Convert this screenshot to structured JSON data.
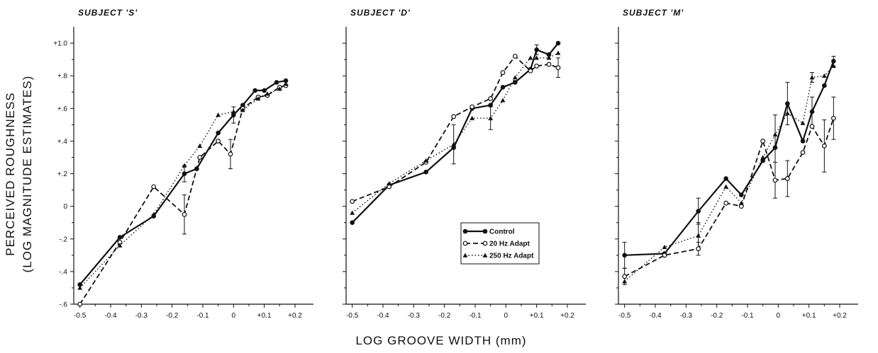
{
  "figure": {
    "ylabel_line1": "PERCEIVED ROUGHNESS",
    "ylabel_line2": "(LOG MAGNITUDE ESTIMATES)",
    "xlabel": "LOG GROOVE WIDTH (mm)"
  },
  "colors": {
    "ink": "#111111",
    "background": "#ffffff"
  },
  "chart_data": [
    {
      "type": "line",
      "title": "SUBJECT 'S'",
      "xlabel": "LOG GROOVE WIDTH (mm)",
      "ylabel": "PERCEIVED ROUGHNESS (LOG MAGNITUDE ESTIMATES)",
      "xlim": [
        -0.52,
        0.26
      ],
      "ylim": [
        -0.6,
        1.1
      ],
      "xticks": [
        -0.5,
        -0.4,
        -0.3,
        -0.2,
        -0.1,
        0,
        0.1,
        0.2
      ],
      "xtick_labels": [
        "-0.5",
        "-0.4",
        "-0.3",
        "-0.2",
        "-0.1",
        "0",
        "+0.1",
        "+0.2"
      ],
      "yticks": [
        -0.6,
        -0.4,
        -0.2,
        0,
        0.2,
        0.4,
        0.6,
        0.8,
        1.0
      ],
      "ytick_labels": [
        "-.6",
        "-.4",
        "-.2",
        "0",
        "+.2",
        "+.4",
        "+.6",
        "+.8",
        "+1.0"
      ],
      "series": [
        {
          "name": "Control",
          "style": "solid",
          "marker": "filled-circle",
          "x": [
            -0.5,
            -0.37,
            -0.26,
            -0.16,
            -0.12,
            -0.05,
            0.0,
            0.03,
            0.07,
            0.1,
            0.14,
            0.17
          ],
          "y": [
            -0.48,
            -0.19,
            -0.06,
            0.2,
            0.23,
            0.45,
            0.56,
            0.62,
            0.71,
            0.71,
            0.76,
            0.77
          ]
        },
        {
          "name": "20 Hz Adapt",
          "style": "dashed",
          "marker": "open-circle",
          "x": [
            -0.5,
            -0.37,
            -0.26,
            -0.16,
            -0.11,
            -0.05,
            -0.01,
            0.03,
            0.08,
            0.11,
            0.15,
            0.17
          ],
          "y": [
            -0.6,
            -0.22,
            0.12,
            -0.05,
            0.3,
            0.4,
            0.32,
            0.6,
            0.67,
            0.68,
            0.73,
            0.74
          ]
        },
        {
          "name": "250 Hz Adapt",
          "style": "dotted",
          "marker": "filled-triangle",
          "x": [
            -0.5,
            -0.37,
            -0.26,
            -0.16,
            -0.11,
            -0.05,
            0.0,
            0.03,
            0.08,
            0.11,
            0.15,
            0.17
          ],
          "y": [
            -0.5,
            -0.24,
            -0.05,
            0.25,
            0.37,
            0.56,
            0.58,
            0.59,
            0.66,
            0.69,
            0.72,
            0.75
          ]
        }
      ],
      "error_bars": [
        {
          "series": "Control",
          "x": -0.16,
          "y": 0.2,
          "err": 0.05
        },
        {
          "series": "Control",
          "x": 0.0,
          "y": 0.56,
          "err": 0.05
        },
        {
          "series": "20 Hz Adapt",
          "x": -0.16,
          "y": -0.05,
          "err": 0.12
        },
        {
          "series": "20 Hz Adapt",
          "x": -0.01,
          "y": 0.32,
          "err": 0.09
        }
      ]
    },
    {
      "type": "line",
      "title": "SUBJECT 'D'",
      "xlabel": "LOG GROOVE WIDTH (mm)",
      "ylabel": "PERCEIVED ROUGHNESS (LOG MAGNITUDE ESTIMATES)",
      "xlim": [
        -0.52,
        0.26
      ],
      "ylim": [
        -0.6,
        1.1
      ],
      "xticks": [
        -0.5,
        -0.4,
        -0.3,
        -0.2,
        -0.1,
        0,
        0.1,
        0.2
      ],
      "xtick_labels": [
        "-0.5",
        "-0.4",
        "-0.3",
        "-0.2",
        "-0.1",
        "0",
        "+0.1",
        "+0.2"
      ],
      "yticks": [
        -0.6,
        -0.4,
        -0.2,
        0,
        0.2,
        0.4,
        0.6,
        0.8,
        1.0
      ],
      "ytick_labels": [],
      "legend_position": "bottom-right",
      "series": [
        {
          "name": "Control",
          "style": "solid",
          "marker": "filled-circle",
          "x": [
            -0.5,
            -0.38,
            -0.26,
            -0.17,
            -0.11,
            -0.05,
            -0.01,
            0.03,
            0.08,
            0.1,
            0.14,
            0.17
          ],
          "y": [
            -0.1,
            0.13,
            0.21,
            0.36,
            0.6,
            0.62,
            0.73,
            0.76,
            0.84,
            0.96,
            0.93,
            1.0
          ]
        },
        {
          "name": "20 Hz Adapt",
          "style": "dashed",
          "marker": "open-circle",
          "x": [
            -0.5,
            -0.38,
            -0.26,
            -0.17,
            -0.11,
            -0.05,
            -0.01,
            0.03,
            0.08,
            0.1,
            0.14,
            0.17
          ],
          "y": [
            0.03,
            0.12,
            0.27,
            0.55,
            0.61,
            0.66,
            0.82,
            0.92,
            0.83,
            0.86,
            0.87,
            0.85
          ]
        },
        {
          "name": "250 Hz Adapt",
          "style": "dotted",
          "marker": "filled-triangle",
          "x": [
            -0.5,
            -0.38,
            -0.26,
            -0.17,
            -0.11,
            -0.05,
            -0.01,
            0.03,
            0.08,
            0.1,
            0.14,
            0.17
          ],
          "y": [
            -0.04,
            0.14,
            0.28,
            0.38,
            0.54,
            0.54,
            0.65,
            0.79,
            0.91,
            0.91,
            0.91,
            0.94
          ]
        }
      ],
      "error_bars": [
        {
          "series": "250 Hz Adapt",
          "x": -0.17,
          "y": 0.38,
          "err": 0.12
        },
        {
          "series": "250 Hz Adapt",
          "x": -0.05,
          "y": 0.54,
          "err": 0.07
        },
        {
          "series": "Control",
          "x": 0.1,
          "y": 0.96,
          "err": 0.03
        },
        {
          "series": "20 Hz Adapt",
          "x": 0.17,
          "y": 0.85,
          "err": 0.06
        }
      ]
    },
    {
      "type": "line",
      "title": "SUBJECT 'M'",
      "xlabel": "LOG GROOVE WIDTH (mm)",
      "ylabel": "PERCEIVED ROUGHNESS (LOG MAGNITUDE ESTIMATES)",
      "xlim": [
        -0.52,
        0.26
      ],
      "ylim": [
        -0.6,
        1.1
      ],
      "xticks": [
        -0.5,
        -0.4,
        -0.3,
        -0.2,
        -0.1,
        0,
        0.1,
        0.2
      ],
      "xtick_labels": [
        "-0.5",
        "-0.4",
        "-0.3",
        "-0.2",
        "-0.1",
        "0",
        "+0.1",
        "+0.2"
      ],
      "yticks": [
        -0.6,
        -0.4,
        -0.2,
        0,
        0.2,
        0.4,
        0.6,
        0.8,
        1.0
      ],
      "ytick_labels": [],
      "series": [
        {
          "name": "Control",
          "style": "solid",
          "marker": "filled-circle",
          "x": [
            -0.5,
            -0.37,
            -0.26,
            -0.17,
            -0.12,
            -0.05,
            -0.01,
            0.03,
            0.08,
            0.11,
            0.15,
            0.18
          ],
          "y": [
            -0.3,
            -0.29,
            -0.03,
            0.17,
            0.07,
            0.28,
            0.36,
            0.63,
            0.4,
            0.58,
            0.74,
            0.89
          ]
        },
        {
          "name": "20 Hz Adapt",
          "style": "dashed",
          "marker": "open-circle",
          "x": [
            -0.5,
            -0.37,
            -0.26,
            -0.17,
            -0.12,
            -0.05,
            -0.01,
            0.03,
            0.08,
            0.11,
            0.15,
            0.18
          ],
          "y": [
            -0.43,
            -0.3,
            -0.26,
            0.02,
            0.0,
            0.4,
            0.16,
            0.17,
            0.33,
            0.49,
            0.37,
            0.54
          ]
        },
        {
          "name": "250 Hz Adapt",
          "style": "dotted",
          "marker": "filled-triangle",
          "x": [
            -0.5,
            -0.37,
            -0.26,
            -0.17,
            -0.12,
            -0.05,
            -0.01,
            0.03,
            0.08,
            0.11,
            0.15,
            0.18
          ],
          "y": [
            -0.46,
            -0.25,
            -0.18,
            0.12,
            0.02,
            0.3,
            0.44,
            0.57,
            0.51,
            0.79,
            0.8,
            0.86
          ]
        }
      ],
      "error_bars": [
        {
          "series": "Control",
          "x": -0.5,
          "y": -0.3,
          "err": 0.08
        },
        {
          "series": "20 Hz Adapt",
          "x": -0.5,
          "y": -0.43,
          "err": 0.05
        },
        {
          "series": "20 Hz Adapt",
          "x": -0.26,
          "y": -0.26,
          "err": 0.04
        },
        {
          "series": "Control",
          "x": -0.26,
          "y": -0.03,
          "err": 0.08
        },
        {
          "series": "250 Hz Adapt",
          "x": -0.26,
          "y": -0.18,
          "err": 0.08
        },
        {
          "series": "20 Hz Adapt",
          "x": -0.01,
          "y": 0.16,
          "err": 0.11
        },
        {
          "series": "Control",
          "x": -0.01,
          "y": 0.36,
          "err": 0.2
        },
        {
          "series": "Control",
          "x": 0.03,
          "y": 0.63,
          "err": 0.13
        },
        {
          "series": "20 Hz Adapt",
          "x": 0.03,
          "y": 0.17,
          "err": 0.11
        },
        {
          "series": "Control",
          "x": 0.11,
          "y": 0.58,
          "err": 0.09
        },
        {
          "series": "250 Hz Adapt",
          "x": 0.11,
          "y": 0.79,
          "err": 0.03
        },
        {
          "series": "20 Hz Adapt",
          "x": 0.15,
          "y": 0.37,
          "err": 0.16
        },
        {
          "series": "Control",
          "x": 0.18,
          "y": 0.89,
          "err": 0.03
        },
        {
          "series": "20 Hz Adapt",
          "x": 0.18,
          "y": 0.54,
          "err": 0.13
        }
      ]
    }
  ]
}
